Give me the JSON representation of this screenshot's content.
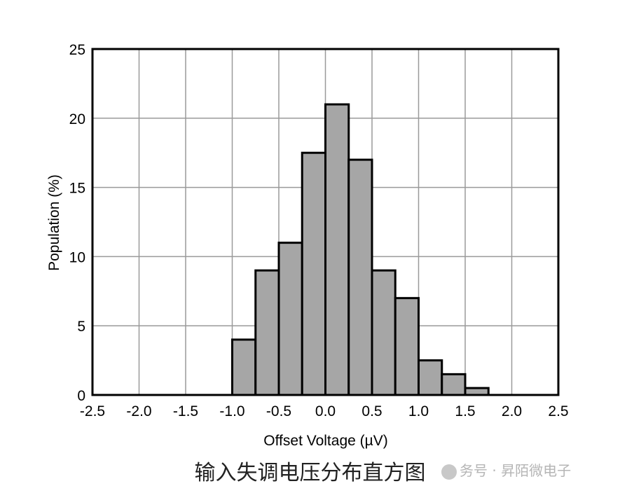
{
  "chart_data": {
    "type": "bar",
    "title": "",
    "xlabel": "Offset Voltage (µV)",
    "ylabel": "Population (%)",
    "xlim": [
      -2.5,
      2.5
    ],
    "ylim": [
      0,
      25
    ],
    "xticks": [
      "-2.5",
      "-2.0",
      "-1.5",
      "-1.0",
      "-0.5",
      "0.0",
      "0.5",
      "1.0",
      "1.5",
      "2.0",
      "2.5"
    ],
    "yticks": [
      "0",
      "5",
      "10",
      "15",
      "20",
      "25"
    ],
    "grid": true,
    "bin_width": 0.25,
    "bins": [
      {
        "x_start": -1.0,
        "value": 4
      },
      {
        "x_start": -0.75,
        "value": 9
      },
      {
        "x_start": -0.5,
        "value": 11
      },
      {
        "x_start": -0.25,
        "value": 17.5
      },
      {
        "x_start": 0.0,
        "value": 21
      },
      {
        "x_start": 0.25,
        "value": 17
      },
      {
        "x_start": 0.5,
        "value": 9
      },
      {
        "x_start": 0.75,
        "value": 7
      },
      {
        "x_start": 1.0,
        "value": 2.5
      },
      {
        "x_start": 1.25,
        "value": 1.5
      },
      {
        "x_start": 1.5,
        "value": 0.5
      }
    ],
    "bar_color": "#a6a6a6"
  },
  "caption": "输入失调电压分布直方图",
  "watermark": "务号 · 昇陌微电子"
}
